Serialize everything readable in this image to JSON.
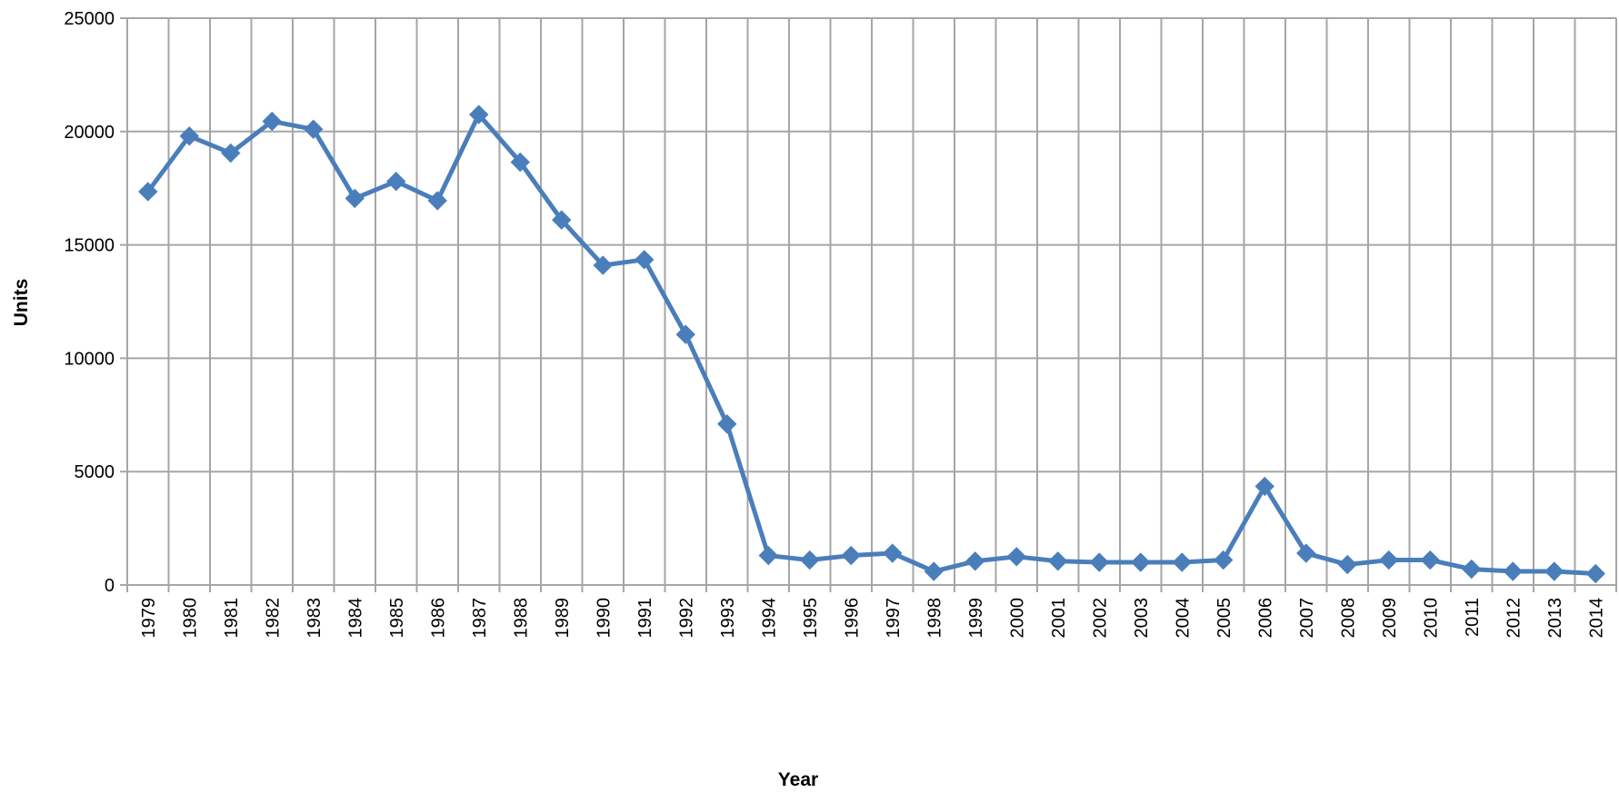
{
  "chart_data": {
    "type": "line",
    "title": "",
    "xlabel": "Year",
    "ylabel": "Units",
    "ylim": [
      0,
      25000
    ],
    "y_ticks": [
      "0",
      "5000",
      "10000",
      "15000",
      "20000",
      "25000"
    ],
    "grid": true,
    "legend": "none",
    "marker": "diamond",
    "line_color": "#4a7ebb",
    "grid_color": "#a6a6a6",
    "categories": [
      "1979",
      "1980",
      "1981",
      "1982",
      "1983",
      "1984",
      "1985",
      "1986",
      "1987",
      "1988",
      "1989",
      "1990",
      "1991",
      "1992",
      "1993",
      "1994",
      "1995",
      "1996",
      "1997",
      "1998",
      "1999",
      "2000",
      "2001",
      "2002",
      "2003",
      "2004",
      "2005",
      "2006",
      "2007",
      "2008",
      "2009",
      "2010",
      "2011",
      "2012",
      "2013",
      "2014"
    ],
    "series": [
      {
        "values": [
          17350,
          19800,
          19050,
          20450,
          20100,
          17050,
          17800,
          16950,
          20750,
          18650,
          16100,
          14100,
          14350,
          11050,
          7100,
          1300,
          1100,
          1300,
          1400,
          600,
          1050,
          1250,
          1050,
          1000,
          1000,
          1000,
          1100,
          4350,
          1400,
          900,
          1100,
          1100,
          700,
          600,
          600,
          500
        ]
      }
    ]
  }
}
